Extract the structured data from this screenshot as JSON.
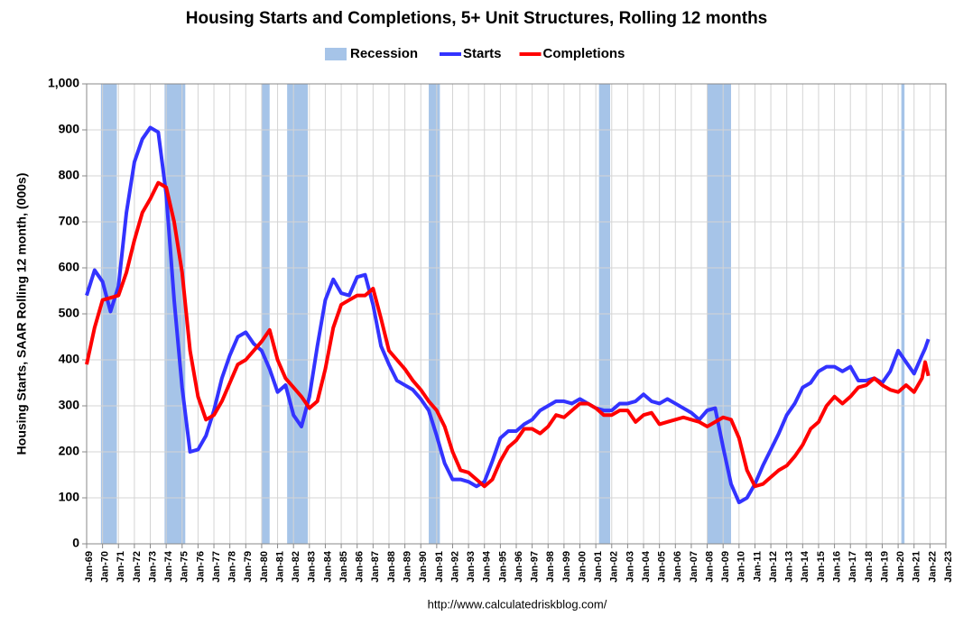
{
  "chart_data": {
    "type": "line",
    "title": "Housing Starts and Completions, 5+ Unit Structures, Rolling 12 months",
    "y_label": "Housing Starts, SAAR Rolling 12 month, (000s)",
    "source": "http://www.calculatedriskblog.com/",
    "grid": true,
    "legend": "top",
    "recession": {
      "name": "Recession",
      "color": "#a6c4e8",
      "periods": [
        [
          1969.9,
          1970.9
        ],
        [
          1973.9,
          1975.2
        ],
        [
          1980.0,
          1980.5
        ],
        [
          1981.6,
          1982.9
        ],
        [
          1990.5,
          1991.2
        ],
        [
          2001.2,
          2001.9
        ],
        [
          2008.0,
          2009.5
        ],
        [
          2020.2,
          2020.4
        ]
      ]
    },
    "x": [
      1969,
      1969.5,
      1970,
      1970.5,
      1971,
      1971.5,
      1972,
      1972.5,
      1973,
      1973.5,
      1974,
      1974.5,
      1975,
      1975.5,
      1976,
      1976.5,
      1977,
      1977.5,
      1978,
      1978.5,
      1979,
      1979.5,
      1980,
      1980.5,
      1981,
      1981.5,
      1982,
      1982.5,
      1983,
      1983.5,
      1984,
      1984.5,
      1985,
      1985.5,
      1986,
      1986.5,
      1987,
      1987.5,
      1988,
      1988.5,
      1989,
      1989.5,
      1990,
      1990.5,
      1991,
      1991.5,
      1992,
      1992.5,
      1993,
      1993.5,
      1994,
      1994.5,
      1995,
      1995.5,
      1996,
      1996.5,
      1997,
      1997.5,
      1998,
      1998.5,
      1999,
      1999.5,
      2000,
      2000.5,
      2001,
      2001.5,
      2002,
      2002.5,
      2003,
      2003.5,
      2004,
      2004.5,
      2005,
      2005.5,
      2006,
      2006.5,
      2007,
      2007.5,
      2008,
      2008.5,
      2009,
      2009.5,
      2010,
      2010.5,
      2011,
      2011.5,
      2012,
      2012.5,
      2013,
      2013.5,
      2014,
      2014.5,
      2015,
      2015.5,
      2016,
      2016.5,
      2017,
      2017.5,
      2018,
      2018.5,
      2019,
      2019.5,
      2020,
      2020.5,
      2021,
      2021.5,
      2021.7,
      2021.9
    ],
    "series": [
      {
        "name": "Starts",
        "color": "#3333ff",
        "values": [
          540,
          595,
          570,
          505,
          560,
          720,
          830,
          880,
          905,
          895,
          760,
          530,
          340,
          200,
          205,
          235,
          290,
          360,
          410,
          450,
          460,
          435,
          420,
          380,
          330,
          345,
          280,
          255,
          320,
          430,
          530,
          575,
          545,
          540,
          580,
          585,
          520,
          430,
          390,
          355,
          345,
          335,
          315,
          290,
          235,
          175,
          140,
          140,
          135,
          125,
          135,
          180,
          230,
          245,
          245,
          260,
          270,
          290,
          300,
          310,
          310,
          305,
          315,
          305,
          295,
          290,
          290,
          305,
          305,
          310,
          325,
          310,
          305,
          315,
          305,
          295,
          285,
          270,
          290,
          295,
          210,
          130,
          90,
          100,
          130,
          170,
          205,
          240,
          280,
          305,
          340,
          350,
          375,
          385,
          385,
          375,
          385,
          355,
          355,
          360,
          350,
          375,
          420,
          395,
          370,
          410,
          425,
          445
        ]
      },
      {
        "name": "Completions",
        "color": "#ff0000",
        "values": [
          390,
          470,
          530,
          535,
          540,
          590,
          660,
          720,
          750,
          785,
          775,
          700,
          590,
          420,
          320,
          270,
          280,
          310,
          350,
          390,
          400,
          420,
          440,
          465,
          400,
          360,
          340,
          320,
          295,
          310,
          380,
          470,
          520,
          530,
          540,
          540,
          555,
          490,
          420,
          400,
          380,
          355,
          335,
          310,
          290,
          255,
          200,
          160,
          155,
          140,
          125,
          140,
          180,
          210,
          225,
          250,
          250,
          240,
          255,
          280,
          275,
          290,
          305,
          305,
          295,
          280,
          280,
          290,
          290,
          265,
          280,
          285,
          260,
          265,
          270,
          275,
          270,
          265,
          255,
          265,
          275,
          270,
          230,
          160,
          125,
          130,
          145,
          160,
          170,
          190,
          215,
          250,
          265,
          300,
          320,
          305,
          320,
          340,
          345,
          360,
          345,
          335,
          330,
          345,
          330,
          360,
          395,
          365
        ]
      }
    ],
    "xlim": [
      1969,
      2023
    ],
    "xticks": [
      {
        "value": 1969,
        "label": "Jan-69"
      },
      {
        "value": 1970,
        "label": "Jan-70"
      },
      {
        "value": 1971,
        "label": "Jan-71"
      },
      {
        "value": 1972,
        "label": "Jan-72"
      },
      {
        "value": 1973,
        "label": "Jan-73"
      },
      {
        "value": 1974,
        "label": "Jan-74"
      },
      {
        "value": 1975,
        "label": "Jan-75"
      },
      {
        "value": 1976,
        "label": "Jan-76"
      },
      {
        "value": 1977,
        "label": "Jan-77"
      },
      {
        "value": 1978,
        "label": "Jan-78"
      },
      {
        "value": 1979,
        "label": "Jan-79"
      },
      {
        "value": 1980,
        "label": "Jan-80"
      },
      {
        "value": 1981,
        "label": "Jan-81"
      },
      {
        "value": 1982,
        "label": "Jan-82"
      },
      {
        "value": 1983,
        "label": "Jan-83"
      },
      {
        "value": 1984,
        "label": "Jan-84"
      },
      {
        "value": 1985,
        "label": "Jan-85"
      },
      {
        "value": 1986,
        "label": "Jan-86"
      },
      {
        "value": 1987,
        "label": "Jan-87"
      },
      {
        "value": 1988,
        "label": "Jan-88"
      },
      {
        "value": 1989,
        "label": "Jan-89"
      },
      {
        "value": 1990,
        "label": "Jan-90"
      },
      {
        "value": 1991,
        "label": "Jan-91"
      },
      {
        "value": 1992,
        "label": "Jan-92"
      },
      {
        "value": 1993,
        "label": "Jan-93"
      },
      {
        "value": 1994,
        "label": "Jan-94"
      },
      {
        "value": 1995,
        "label": "Jan-95"
      },
      {
        "value": 1996,
        "label": "Jan-96"
      },
      {
        "value": 1997,
        "label": "Jan-97"
      },
      {
        "value": 1998,
        "label": "Jan-98"
      },
      {
        "value": 1999,
        "label": "Jan-99"
      },
      {
        "value": 2000,
        "label": "Jan-00"
      },
      {
        "value": 2001,
        "label": "Jan-01"
      },
      {
        "value": 2002,
        "label": "Jan-02"
      },
      {
        "value": 2003,
        "label": "Jan-03"
      },
      {
        "value": 2004,
        "label": "Jan-04"
      },
      {
        "value": 2005,
        "label": "Jan-05"
      },
      {
        "value": 2006,
        "label": "Jan-06"
      },
      {
        "value": 2007,
        "label": "Jan-07"
      },
      {
        "value": 2008,
        "label": "Jan-08"
      },
      {
        "value": 2009,
        "label": "Jan-09"
      },
      {
        "value": 2010,
        "label": "Jan-10"
      },
      {
        "value": 2011,
        "label": "Jan-11"
      },
      {
        "value": 2012,
        "label": "Jan-12"
      },
      {
        "value": 2013,
        "label": "Jan-13"
      },
      {
        "value": 2014,
        "label": "Jan-14"
      },
      {
        "value": 2015,
        "label": "Jan-15"
      },
      {
        "value": 2016,
        "label": "Jan-16"
      },
      {
        "value": 2017,
        "label": "Jan-17"
      },
      {
        "value": 2018,
        "label": "Jan-18"
      },
      {
        "value": 2019,
        "label": "Jan-19"
      },
      {
        "value": 2020,
        "label": "Jan-20"
      },
      {
        "value": 2021,
        "label": "Jan-21"
      },
      {
        "value": 2022,
        "label": "Jan-22"
      },
      {
        "value": 2023,
        "label": "Jan-23"
      }
    ],
    "ylim": [
      0,
      1000
    ],
    "yticks": [
      0,
      100,
      200,
      300,
      400,
      500,
      600,
      700,
      800,
      900,
      {
        "value": 1000,
        "label": "1,000"
      }
    ]
  }
}
